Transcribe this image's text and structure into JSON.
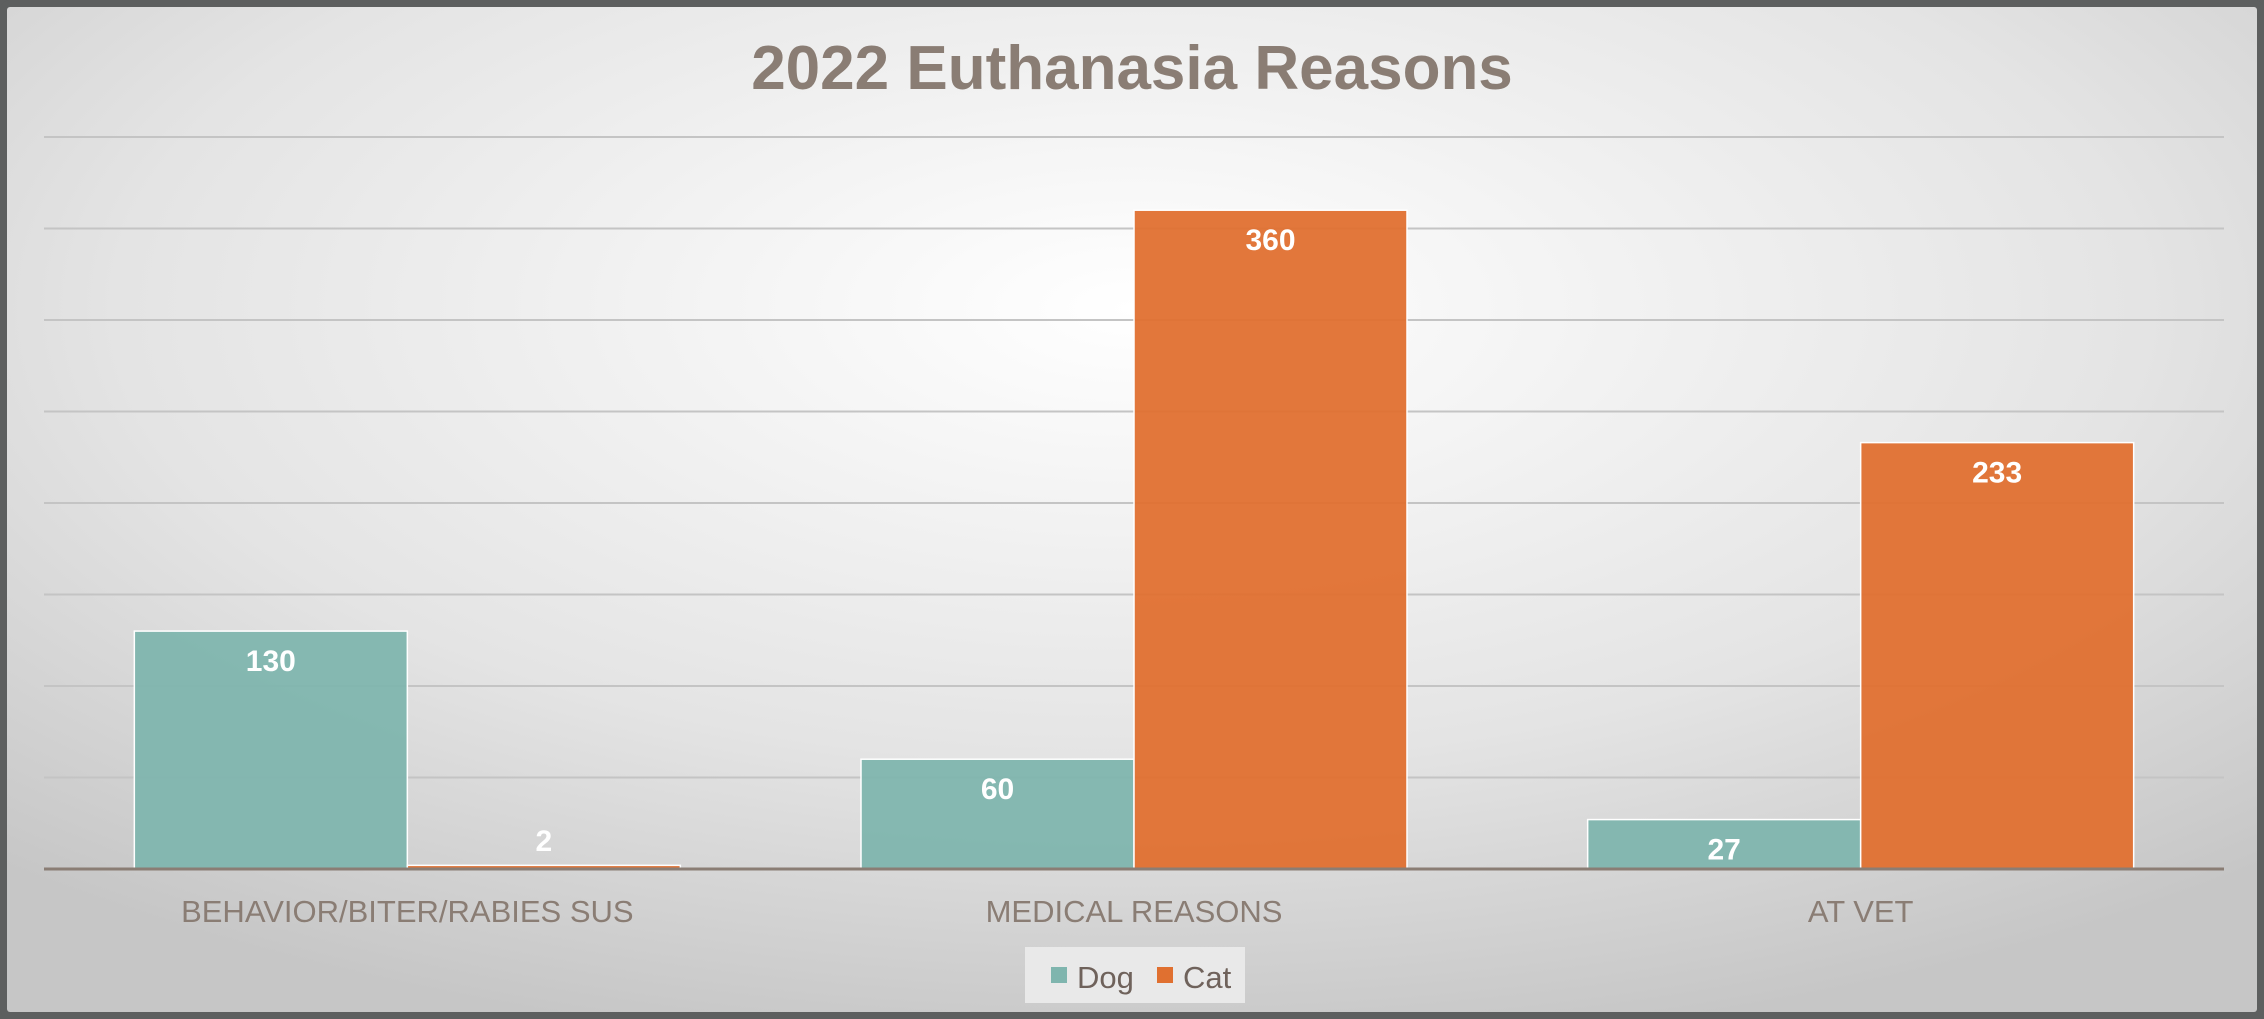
{
  "chart_data": {
    "type": "bar",
    "title": "2022 Euthanasia Reasons",
    "categories": [
      "BEHAVIOR/BITER/RABIES SUS",
      "MEDICAL REASONS",
      "AT VET"
    ],
    "series": [
      {
        "name": "Dog",
        "values": [
          130,
          60,
          27
        ],
        "color": "#7fb5ae"
      },
      {
        "name": "Cat",
        "values": [
          2,
          360,
          233
        ],
        "color": "#e07030"
      }
    ],
    "ylim": [
      0,
      400
    ],
    "grid": true,
    "legend_position": "bottom",
    "xlabel": "",
    "ylabel": ""
  }
}
